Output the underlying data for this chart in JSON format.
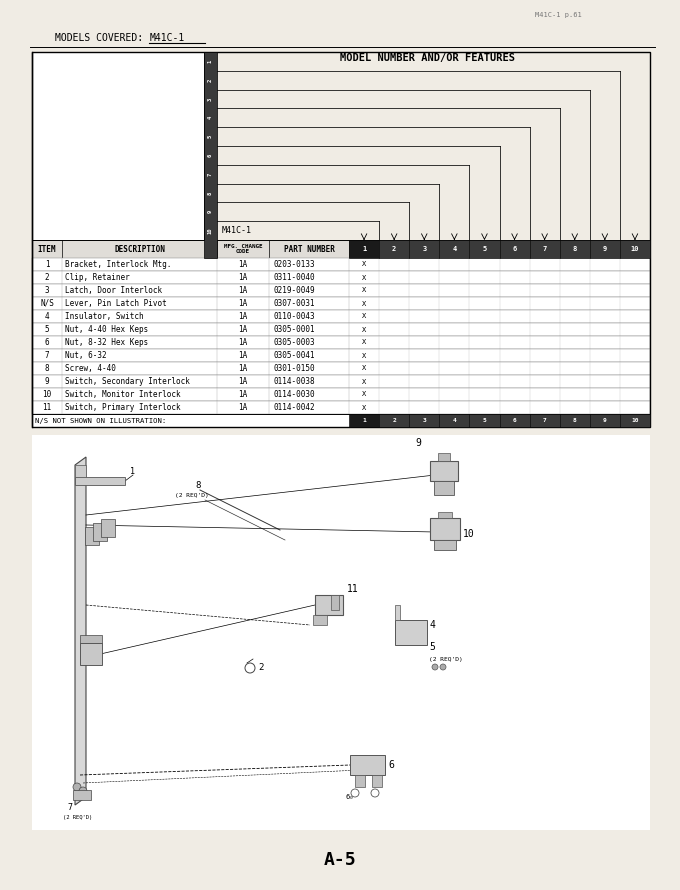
{
  "page_label": "A-5",
  "corner_text": "M41C-1 p.61",
  "top_label_prefix": "MODELS COVERED:",
  "top_label_model": "M41C-1",
  "model_header": "MODEL NUMBER AND/OR FEATURES",
  "model_name": "M41C-1",
  "bg_color": "#f0ece4",
  "table_bg": "#ffffff",
  "rows": [
    {
      "item": "1",
      "desc": "Bracket, Interlock Mtg.",
      "mfg": "1A",
      "part": "0203-0133",
      "marks": [
        1
      ]
    },
    {
      "item": "2",
      "desc": "Clip, Retainer",
      "mfg": "1A",
      "part": "0311-0040",
      "marks": [
        1
      ]
    },
    {
      "item": "3",
      "desc": "Latch, Door Interlock",
      "mfg": "1A",
      "part": "0219-0049",
      "marks": [
        1
      ]
    },
    {
      "item": "N/S",
      "desc": "Lever, Pin Latch Pivot",
      "mfg": "1A",
      "part": "0307-0031",
      "marks": [
        1
      ]
    },
    {
      "item": "4",
      "desc": "Insulator, Switch",
      "mfg": "1A",
      "part": "0110-0043",
      "marks": [
        1
      ]
    },
    {
      "item": "5",
      "desc": "Nut, 4-40 Hex Keps",
      "mfg": "1A",
      "part": "0305-0001",
      "marks": [
        1
      ]
    },
    {
      "item": "6",
      "desc": "Nut, 8-32 Hex Keps",
      "mfg": "1A",
      "part": "0305-0003",
      "marks": [
        1
      ]
    },
    {
      "item": "7",
      "desc": "Nut, 6-32",
      "mfg": "1A",
      "part": "0305-0041",
      "marks": [
        1
      ]
    },
    {
      "item": "8",
      "desc": "Screw, 4-40",
      "mfg": "1A",
      "part": "0301-0150",
      "marks": [
        1
      ]
    },
    {
      "item": "9",
      "desc": "Switch, Secondary Interlock",
      "mfg": "1A",
      "part": "0114-0038",
      "marks": [
        1
      ]
    },
    {
      "item": "10",
      "desc": "Switch, Monitor Interlock",
      "mfg": "1A",
      "part": "0114-0030",
      "marks": [
        1
      ]
    },
    {
      "item": "11",
      "desc": "Switch, Primary Interlock",
      "mfg": "1A",
      "part": "0114-0042",
      "marks": [
        1
      ]
    }
  ],
  "footer_note": "N/S NOT SHOWN ON ILLUSTRATION:",
  "fig_width": 6.8,
  "fig_height": 8.9
}
